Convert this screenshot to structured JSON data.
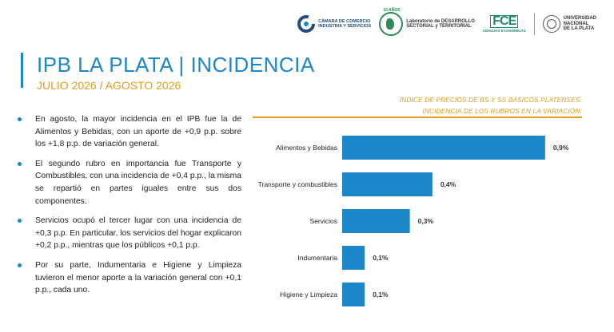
{
  "header": {
    "logos": {
      "camara_line1": "CÁMARA DE COMERCIO",
      "camara_line2": "INDUSTRIA Y SERVICIOS",
      "lab_years": "10 AÑOS",
      "lab_line1": "Laboratorio de DESARROLLO",
      "lab_line2": "SECTORIAL y TERRITORIAL",
      "fce_big": "FCE",
      "fce_small": "CIENCIAS ECONÓMICAS",
      "unlp_line1": "UNIVERSIDAD",
      "unlp_line2": "NACIONAL",
      "unlp_line3": "DE LA PLATA"
    },
    "title": "IPB LA PLATA | INCIDENCIA",
    "subtitle": "JULIO 2026 / AGOSTO 2026"
  },
  "bullets": [
    "En agosto, la mayor incidencia en el IPB fue la de Alimentos y Bebidas, con un aporte de +0,9 p.p. sobre los +1,8 p.p. de variación general.",
    "El segundo rubro en importancia fue Transporte y Combustibles, con una incidencia de +0,4 p.p., la misma se repartió en partes iguales entre sus dos componentes.",
    "Servicios ocupó el tercer lugar con una incidencia de +0,3 p.p. En particular, los servicios del hogar explicaron +0,2 p.p., mientras que los públicos +0,1 p.p.",
    "Por su parte, Indumentaria e Higiene y Limpieza tuvieron el menor aporte a la variación general con +0,1 p.p., cada uno."
  ],
  "chart_data": {
    "type": "bar",
    "orientation": "horizontal",
    "title_line1": "ÍNDICE DE PRECIOS DE BS Y SS BÁSICOS PLATENSES.",
    "title_line2": "INCIDENCIA DE LOS RUBROS EN LA VARIACIÓN.",
    "categories": [
      "Alimentos y Bebidas",
      "Transporte y combustibles",
      "Servicios",
      "Indumentaria",
      "Higiene y Limpieza"
    ],
    "values": [
      0.9,
      0.4,
      0.3,
      0.1,
      0.1
    ],
    "data_labels": [
      "0,9%",
      "0,4%",
      "0,3%",
      "0,1%",
      "0,1%"
    ],
    "xlim": [
      0,
      0.95
    ],
    "bar_color": "#1c87c9",
    "title_color": "#e89a1b",
    "grid": false,
    "xlabel": "",
    "ylabel": ""
  }
}
